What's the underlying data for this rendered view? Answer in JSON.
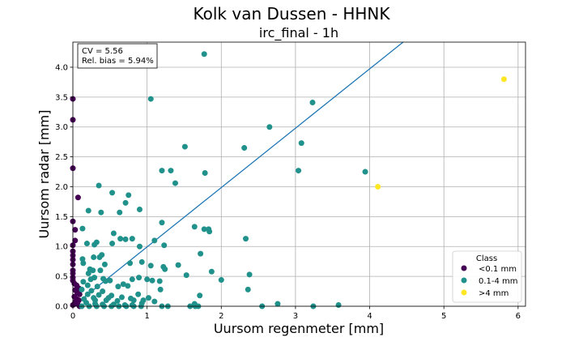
{
  "chart_data": {
    "type": "scatter",
    "title": "Kolk van Dussen - HHNK",
    "subtitle": "irc_final - 1h",
    "xlabel": "Uursom regenmeter [mm]",
    "ylabel": "Uursom radar [mm]",
    "xlim": [
      0,
      6.1
    ],
    "ylim": [
      0,
      4.42
    ],
    "xticks": [
      "0",
      "1",
      "2",
      "3",
      "4",
      "5",
      "6"
    ],
    "yticks": [
      "0.0",
      "0.5",
      "1.0",
      "1.5",
      "2.0",
      "2.5",
      "3.0",
      "3.5",
      "4.0"
    ],
    "grid": true,
    "stats": {
      "cv": "CV = 5.56",
      "bias": "Rel. bias = 5.94%"
    },
    "identity_line": {
      "from": [
        0,
        0
      ],
      "to": [
        4.45,
        4.42
      ],
      "color": "#1f77b4"
    },
    "legend": {
      "title": "Class",
      "position": "lower-right"
    },
    "series": [
      {
        "name": "<0.1 mm",
        "color": "#440154",
        "points": [
          [
            0.0,
            3.47
          ],
          [
            0.0,
            3.12
          ],
          [
            0.0,
            2.31
          ],
          [
            0.07,
            1.82
          ],
          [
            0.0,
            1.42
          ],
          [
            0.03,
            1.28
          ],
          [
            0.03,
            1.1
          ],
          [
            0.0,
            1.02
          ],
          [
            0.0,
            0.92
          ],
          [
            0.0,
            0.85
          ],
          [
            0.0,
            0.78
          ],
          [
            0.0,
            0.7
          ],
          [
            0.0,
            0.6
          ],
          [
            0.0,
            0.55
          ],
          [
            0.0,
            0.48
          ],
          [
            0.0,
            0.43
          ],
          [
            0.02,
            0.38
          ],
          [
            0.05,
            0.35
          ],
          [
            0.08,
            0.3
          ],
          [
            0.03,
            0.27
          ],
          [
            0.06,
            0.22
          ],
          [
            0.09,
            0.2
          ],
          [
            0.02,
            0.16
          ],
          [
            0.05,
            0.12
          ],
          [
            0.08,
            0.1
          ],
          [
            0.03,
            0.07
          ],
          [
            0.06,
            0.04
          ],
          [
            0.0,
            0.02
          ],
          [
            0.09,
            0.0
          ]
        ]
      },
      {
        "name": "0.1-4 mm",
        "color": "#21918c",
        "points": [
          [
            1.77,
            4.22
          ],
          [
            1.05,
            3.47
          ],
          [
            3.23,
            3.41
          ],
          [
            2.65,
            3.0
          ],
          [
            3.08,
            2.73
          ],
          [
            1.51,
            2.67
          ],
          [
            2.31,
            2.65
          ],
          [
            3.04,
            2.27
          ],
          [
            3.94,
            2.25
          ],
          [
            1.2,
            2.27
          ],
          [
            1.32,
            2.27
          ],
          [
            1.78,
            2.23
          ],
          [
            1.38,
            2.06
          ],
          [
            0.35,
            2.02
          ],
          [
            0.53,
            1.9
          ],
          [
            0.75,
            1.86
          ],
          [
            0.21,
            1.6
          ],
          [
            0.71,
            1.73
          ],
          [
            0.9,
            1.62
          ],
          [
            0.63,
            1.57
          ],
          [
            0.38,
            1.57
          ],
          [
            1.2,
            1.4
          ],
          [
            1.64,
            1.33
          ],
          [
            1.77,
            1.29
          ],
          [
            1.83,
            1.29
          ],
          [
            1.84,
            1.25
          ],
          [
            0.55,
            1.22
          ],
          [
            0.13,
            1.3
          ],
          [
            0.64,
            1.13
          ],
          [
            0.71,
            1.12
          ],
          [
            0.8,
            1.13
          ],
          [
            2.33,
            1.13
          ],
          [
            1.1,
            1.1
          ],
          [
            0.19,
            1.05
          ],
          [
            0.32,
            1.07
          ],
          [
            0.29,
            1.03
          ],
          [
            0.9,
            1.0
          ],
          [
            1.23,
            1.02
          ],
          [
            0.53,
            1.05
          ],
          [
            0.39,
            0.86
          ],
          [
            0.36,
            0.82
          ],
          [
            0.28,
            0.82
          ],
          [
            0.13,
            0.79
          ],
          [
            0.14,
            0.72
          ],
          [
            0.43,
            0.7
          ],
          [
            0.77,
            0.72
          ],
          [
            0.93,
            0.74
          ],
          [
            1.05,
            0.68
          ],
          [
            1.22,
            0.66
          ],
          [
            1.24,
            0.62
          ],
          [
            1.42,
            0.69
          ],
          [
            1.72,
            0.88
          ],
          [
            0.27,
            0.6
          ],
          [
            0.37,
            0.6
          ],
          [
            0.21,
            0.55
          ],
          [
            0.23,
            0.62
          ],
          [
            1.87,
            0.58
          ],
          [
            2.38,
            0.53
          ],
          [
            1.53,
            0.52
          ],
          [
            0.8,
            0.45
          ],
          [
            0.89,
            0.48
          ],
          [
            1.0,
            0.45
          ],
          [
            1.07,
            0.43
          ],
          [
            1.17,
            0.42
          ],
          [
            0.14,
            0.41
          ],
          [
            0.24,
            0.45
          ],
          [
            0.29,
            0.48
          ],
          [
            0.41,
            0.46
          ],
          [
            0.44,
            0.42
          ],
          [
            0.5,
            0.43
          ],
          [
            0.2,
            0.35
          ],
          [
            0.33,
            0.33
          ],
          [
            0.61,
            0.33
          ],
          [
            0.68,
            0.37
          ],
          [
            0.74,
            0.34
          ],
          [
            2.0,
            0.44
          ],
          [
            0.12,
            0.28
          ],
          [
            0.25,
            0.26
          ],
          [
            0.4,
            0.25
          ],
          [
            0.2,
            0.2
          ],
          [
            0.35,
            0.19
          ],
          [
            0.52,
            0.18
          ],
          [
            0.88,
            0.2
          ],
          [
            1.18,
            0.28
          ],
          [
            2.36,
            0.28
          ],
          [
            1.71,
            0.18
          ],
          [
            0.15,
            0.12
          ],
          [
            0.3,
            0.1
          ],
          [
            0.45,
            0.1
          ],
          [
            0.6,
            0.09
          ],
          [
            0.82,
            0.1
          ],
          [
            0.95,
            0.1
          ],
          [
            1.1,
            0.08
          ],
          [
            0.18,
            0.06
          ],
          [
            0.3,
            0.04
          ],
          [
            0.4,
            0.03
          ],
          [
            0.55,
            0.03
          ],
          [
            0.7,
            0.02
          ],
          [
            0.8,
            0.02
          ],
          [
            0.93,
            0.05
          ],
          [
            2.76,
            0.04
          ],
          [
            1.64,
            0.04
          ],
          [
            0.12,
            0.0
          ],
          [
            0.22,
            0.0
          ],
          [
            0.32,
            0.0
          ],
          [
            0.42,
            0.0
          ],
          [
            0.52,
            0.0
          ],
          [
            0.62,
            0.0
          ],
          [
            0.72,
            0.0
          ],
          [
            0.82,
            0.0
          ],
          [
            0.92,
            0.0
          ],
          [
            1.2,
            0.0
          ],
          [
            1.28,
            0.0
          ],
          [
            1.65,
            0.0
          ],
          [
            1.58,
            0.0
          ],
          [
            1.69,
            0.0
          ],
          [
            3.24,
            0.0
          ],
          [
            3.58,
            0.02
          ],
          [
            2.55,
            0.0
          ],
          [
            0.28,
            0.14
          ],
          [
            0.48,
            0.14
          ],
          [
            0.66,
            0.15
          ],
          [
            0.78,
            0.13
          ],
          [
            1.02,
            0.14
          ]
        ]
      },
      {
        "name": ">4 mm",
        "color": "#fde725",
        "points": [
          [
            5.81,
            3.8
          ],
          [
            4.11,
            2.0
          ]
        ]
      }
    ]
  }
}
